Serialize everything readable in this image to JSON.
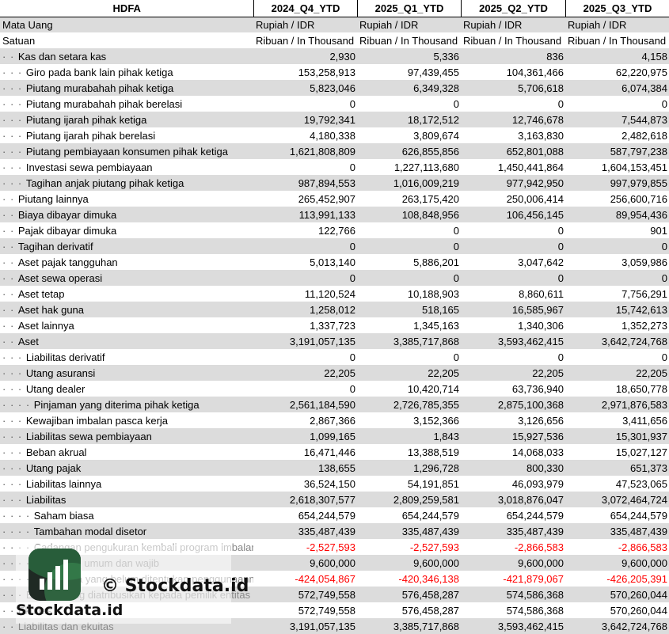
{
  "header": {
    "title": "HDFA",
    "columns": [
      "2024_Q4_YTD",
      "2025_Q1_YTD",
      "2025_Q2_YTD",
      "2025_Q3_YTD"
    ]
  },
  "rows": [
    {
      "dots": "",
      "label": "Mata Uang",
      "values": [
        "Rupiah / IDR",
        "Rupiah / IDR",
        "Rupiah / IDR",
        "Rupiah / IDR"
      ],
      "align": "left"
    },
    {
      "dots": "",
      "label": "Satuan",
      "values": [
        "Ribuan / In Thousand",
        "Ribuan / In Thousand",
        "Ribuan / In Thousand",
        "Ribuan / In Thousand"
      ],
      "align": "left"
    },
    {
      "dots": "· · ",
      "label": "Kas dan setara kas",
      "values": [
        "2,930",
        "5,336",
        "836",
        "4,158"
      ]
    },
    {
      "dots": "· · · ",
      "label": "Giro pada bank lain pihak ketiga",
      "values": [
        "153,258,913",
        "97,439,455",
        "104,361,466",
        "62,220,975"
      ]
    },
    {
      "dots": "· · · ",
      "label": "Piutang murabahah pihak ketiga",
      "values": [
        "5,823,046",
        "6,349,328",
        "5,706,618",
        "6,074,384"
      ]
    },
    {
      "dots": "· · · ",
      "label": "Piutang murabahah pihak berelasi",
      "values": [
        "0",
        "0",
        "0",
        "0"
      ]
    },
    {
      "dots": "· · · ",
      "label": "Piutang ijarah pihak ketiga",
      "values": [
        "19,792,341",
        "18,172,512",
        "12,746,678",
        "7,544,873"
      ]
    },
    {
      "dots": "· · · ",
      "label": "Piutang ijarah pihak berelasi",
      "values": [
        "4,180,338",
        "3,809,674",
        "3,163,830",
        "2,482,618"
      ]
    },
    {
      "dots": "· · · ",
      "label": "Piutang pembiayaan konsumen pihak ketiga",
      "values": [
        "1,621,808,809",
        "626,855,856",
        "652,801,088",
        "587,797,238"
      ]
    },
    {
      "dots": "· · · ",
      "label": "Investasi sewa pembiayaan",
      "values": [
        "0",
        "1,227,113,680",
        "1,450,441,864",
        "1,604,153,451"
      ]
    },
    {
      "dots": "· · · ",
      "label": "Tagihan anjak piutang pihak ketiga",
      "values": [
        "987,894,553",
        "1,016,009,219",
        "977,942,950",
        "997,979,855"
      ]
    },
    {
      "dots": "· · ",
      "label": "Piutang lainnya",
      "values": [
        "265,452,907",
        "263,175,420",
        "250,006,414",
        "256,600,716"
      ]
    },
    {
      "dots": "· · ",
      "label": "Biaya dibayar dimuka",
      "values": [
        "113,991,133",
        "108,848,956",
        "106,456,145",
        "89,954,436"
      ]
    },
    {
      "dots": "· · ",
      "label": "Pajak dibayar dimuka",
      "values": [
        "122,766",
        "0",
        "0",
        "901"
      ]
    },
    {
      "dots": "· · ",
      "label": "Tagihan derivatif",
      "values": [
        "0",
        "0",
        "0",
        "0"
      ]
    },
    {
      "dots": "· · ",
      "label": "Aset pajak tangguhan",
      "values": [
        "5,013,140",
        "5,886,201",
        "3,047,642",
        "3,059,986"
      ]
    },
    {
      "dots": "· · ",
      "label": "Aset sewa operasi",
      "values": [
        "0",
        "0",
        "0",
        "0"
      ]
    },
    {
      "dots": "· · ",
      "label": "Aset tetap",
      "values": [
        "11,120,524",
        "10,188,903",
        "8,860,611",
        "7,756,291"
      ]
    },
    {
      "dots": "· · ",
      "label": "Aset hak guna",
      "values": [
        "1,258,012",
        "518,165",
        "16,585,967",
        "15,742,613"
      ]
    },
    {
      "dots": "· · ",
      "label": "Aset lainnya",
      "values": [
        "1,337,723",
        "1,345,163",
        "1,340,306",
        "1,352,273"
      ]
    },
    {
      "dots": "· · ",
      "label": "Aset",
      "values": [
        "3,191,057,135",
        "3,385,717,868",
        "3,593,462,415",
        "3,642,724,768"
      ]
    },
    {
      "dots": "· · · ",
      "label": "Liabilitas derivatif",
      "values": [
        "0",
        "0",
        "0",
        "0"
      ]
    },
    {
      "dots": "· · · ",
      "label": "Utang asuransi",
      "values": [
        "22,205",
        "22,205",
        "22,205",
        "22,205"
      ]
    },
    {
      "dots": "· · · ",
      "label": "Utang dealer",
      "values": [
        "0",
        "10,420,714",
        "63,736,940",
        "18,650,778"
      ]
    },
    {
      "dots": "· · · · ",
      "label": "Pinjaman yang diterima pihak ketiga",
      "values": [
        "2,561,184,590",
        "2,726,785,355",
        "2,875,100,368",
        "2,971,876,583"
      ]
    },
    {
      "dots": "· · · ",
      "label": "Kewajiban imbalan pasca kerja",
      "values": [
        "2,867,366",
        "3,152,366",
        "3,126,656",
        "3,411,656"
      ]
    },
    {
      "dots": "· · · ",
      "label": "Liabilitas sewa pembiayaan",
      "values": [
        "1,099,165",
        "1,843",
        "15,927,536",
        "15,301,937"
      ]
    },
    {
      "dots": "· · · ",
      "label": "Beban akrual",
      "values": [
        "16,471,446",
        "13,388,519",
        "14,068,033",
        "15,027,127"
      ]
    },
    {
      "dots": "· · · ",
      "label": "Utang pajak",
      "values": [
        "138,655",
        "1,296,728",
        "800,330",
        "651,373"
      ]
    },
    {
      "dots": "· · · ",
      "label": "Liabilitas lainnya",
      "values": [
        "36,524,150",
        "54,191,851",
        "46,093,979",
        "47,523,065"
      ]
    },
    {
      "dots": "· · · ",
      "label": "Liabilitas",
      "values": [
        "2,618,307,577",
        "2,809,259,581",
        "3,018,876,047",
        "3,072,464,724"
      ]
    },
    {
      "dots": "· · · · ",
      "label": "Saham biasa",
      "values": [
        "654,244,579",
        "654,244,579",
        "654,244,579",
        "654,244,579"
      ]
    },
    {
      "dots": "· · · · ",
      "label": "Tambahan modal disetor",
      "values": [
        "335,487,439",
        "335,487,439",
        "335,487,439",
        "335,487,439"
      ]
    },
    {
      "dots": "· · · · ",
      "label": "Cadangan pengukuran kembali program imbalan",
      "values": [
        "-2,527,593",
        "-2,527,593",
        "-2,866,583",
        "-2,866,583"
      ],
      "negative": true,
      "faded": true
    },
    {
      "dots": "· · · · ",
      "label": "Cadangan umum dan wajib",
      "values": [
        "9,600,000",
        "9,600,000",
        "9,600,000",
        "9,600,000"
      ],
      "faded": true
    },
    {
      "dots": "· · · · ",
      "label": "Saldo laba yang belum ditentukan penggunaannya",
      "values": [
        "-424,054,867",
        "-420,346,138",
        "-421,879,067",
        "-426,205,391"
      ],
      "negative": true,
      "faded": true
    },
    {
      "dots": "· · · ",
      "label": "Ekuitas yang diatribusikan kepada pemilik entitas induk",
      "values": [
        "572,749,558",
        "576,458,287",
        "574,586,368",
        "570,260,044"
      ],
      "faded": true
    },
    {
      "dots": "· · ",
      "label": "Ekuitas",
      "values": [
        "572,749,558",
        "576,458,287",
        "574,586,368",
        "570,260,044"
      ],
      "faded": true
    },
    {
      "dots": "· · ",
      "label": "Liabilitas dan ekuitas",
      "values": [
        "3,191,057,135",
        "3,385,717,868",
        "3,593,462,415",
        "3,642,724,768"
      ],
      "faded": true
    }
  ],
  "watermark": {
    "line1": "© Stockdata.id",
    "line2": "Stockdata.id",
    "icon": "bar-chart-logo-icon"
  }
}
